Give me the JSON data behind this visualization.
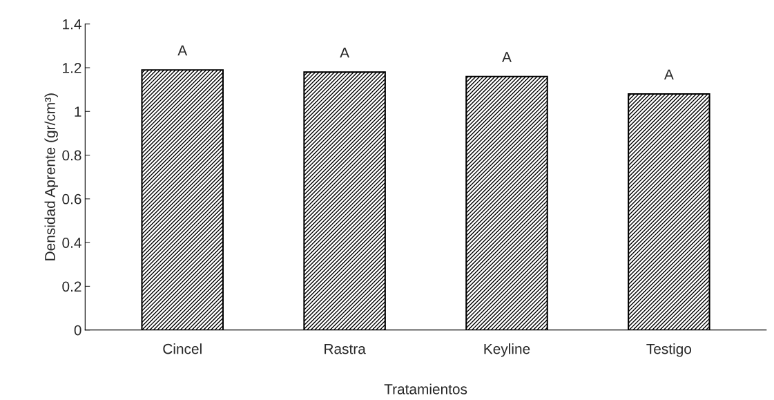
{
  "chart_data": {
    "type": "bar",
    "xlabel": "Tratamientos",
    "ylabel": "Densidad Aprente (gr/cm³)",
    "categories": [
      "Cincel",
      "Rastra",
      "Keyline",
      "Testigo"
    ],
    "values": [
      1.19,
      1.18,
      1.16,
      1.08
    ],
    "color": "#000000",
    "ylim": [
      0,
      1.4
    ],
    "yticks": [
      0,
      0.2,
      0.4,
      0.6,
      0.8,
      1,
      1.2,
      1.4
    ],
    "grid": false,
    "annotations": [
      {
        "text": "A",
        "x": "Cincel",
        "y": 1.19
      },
      {
        "text": "A",
        "x": "Rastra",
        "y": 1.18
      },
      {
        "text": "A",
        "x": "Keyline",
        "y": 1.16
      },
      {
        "text": "A",
        "x": "Testigo",
        "y": 1.08
      }
    ]
  }
}
